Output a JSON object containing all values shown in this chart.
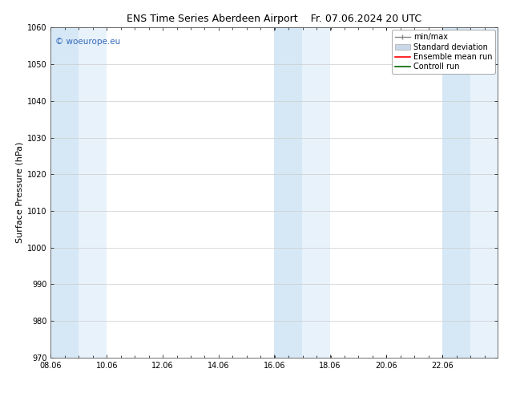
{
  "title": "ENS Time Series Aberdeen Airport",
  "title2": "Fr. 07.06.2024 20 UTC",
  "ylabel": "Surface Pressure (hPa)",
  "ylim": [
    970,
    1060
  ],
  "yticks": [
    970,
    980,
    990,
    1000,
    1010,
    1020,
    1030,
    1040,
    1050,
    1060
  ],
  "xlim_start": 0,
  "xlim_end": 15.5,
  "xtick_labels": [
    "08.06",
    "10.06",
    "12.06",
    "14.06",
    "16.06",
    "18.06",
    "20.06",
    "22.06"
  ],
  "xtick_positions": [
    0.0,
    1.94,
    3.88,
    5.82,
    7.75,
    9.69,
    11.63,
    13.57
  ],
  "shaded_bands": [
    {
      "x_start": 0.0,
      "x_end": 0.97,
      "color": "#d6e8f5"
    },
    {
      "x_start": 0.97,
      "x_end": 1.94,
      "color": "#e8f2fb"
    },
    {
      "x_start": 7.75,
      "x_end": 8.72,
      "color": "#d6e8f5"
    },
    {
      "x_start": 8.72,
      "x_end": 9.69,
      "color": "#e8f2fb"
    },
    {
      "x_start": 13.57,
      "x_end": 14.54,
      "color": "#d6e8f5"
    },
    {
      "x_start": 14.54,
      "x_end": 15.5,
      "color": "#e8f2fb"
    }
  ],
  "watermark": "© woeurope.eu",
  "watermark_color": "#3366bb",
  "bg_color": "#ffffff",
  "plot_bg_color": "#ffffff",
  "grid_color": "#cccccc",
  "title_fontsize": 9,
  "label_fontsize": 8,
  "tick_fontsize": 7,
  "legend_fontsize": 7
}
